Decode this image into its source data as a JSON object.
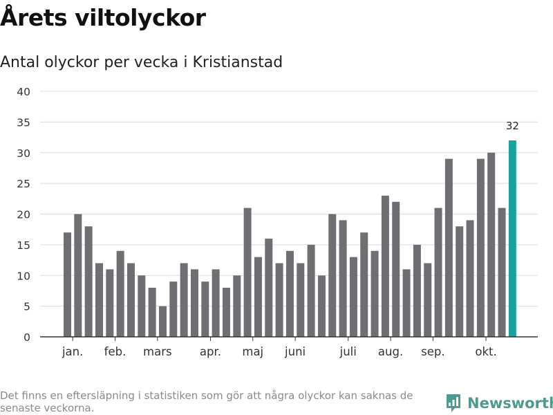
{
  "header": {
    "title": "Årets viltolyckor",
    "subtitle": "Antal olyckor per vecka i Kristianstad"
  },
  "chart_data": {
    "type": "bar",
    "title": "Årets viltolyckor",
    "subtitle": "Antal olyckor per vecka i Kristianstad",
    "xlabel": "",
    "ylabel": "",
    "ylim": [
      0,
      40
    ],
    "yticks": [
      0,
      5,
      10,
      15,
      20,
      25,
      30,
      35,
      40
    ],
    "grid": true,
    "values": [
      17,
      20,
      18,
      12,
      11,
      14,
      12,
      10,
      8,
      5,
      9,
      12,
      11,
      9,
      11,
      8,
      10,
      21,
      13,
      16,
      12,
      14,
      12,
      15,
      10,
      20,
      19,
      13,
      17,
      14,
      23,
      22,
      11,
      15,
      12,
      21,
      29,
      18,
      19,
      29,
      30,
      21,
      32
    ],
    "month_labels": [
      {
        "label": "jan.",
        "index": 0.5
      },
      {
        "label": "feb.",
        "index": 4.5
      },
      {
        "label": "mars",
        "index": 8.5
      },
      {
        "label": "apr.",
        "index": 13.5
      },
      {
        "label": "maj",
        "index": 17.5
      },
      {
        "label": "juni",
        "index": 21.5
      },
      {
        "label": "juli",
        "index": 26.5
      },
      {
        "label": "aug.",
        "index": 30.5
      },
      {
        "label": "sep.",
        "index": 34.5
      },
      {
        "label": "okt.",
        "index": 39.5
      }
    ],
    "highlight_index": 42,
    "data_labels": [
      {
        "index": 42,
        "text": "32"
      }
    ],
    "bar_color": "#6f6e73",
    "highlight_color": "#1aa39a"
  },
  "footer": {
    "note": "Det finns en eftersläpning i statistiken som gör att några olyckor kan saknas de senaste veckorna.",
    "brand": "Newsworthy",
    "brand_icon": "newsworthy-logo-icon",
    "brand_color": "#4d9a91"
  }
}
